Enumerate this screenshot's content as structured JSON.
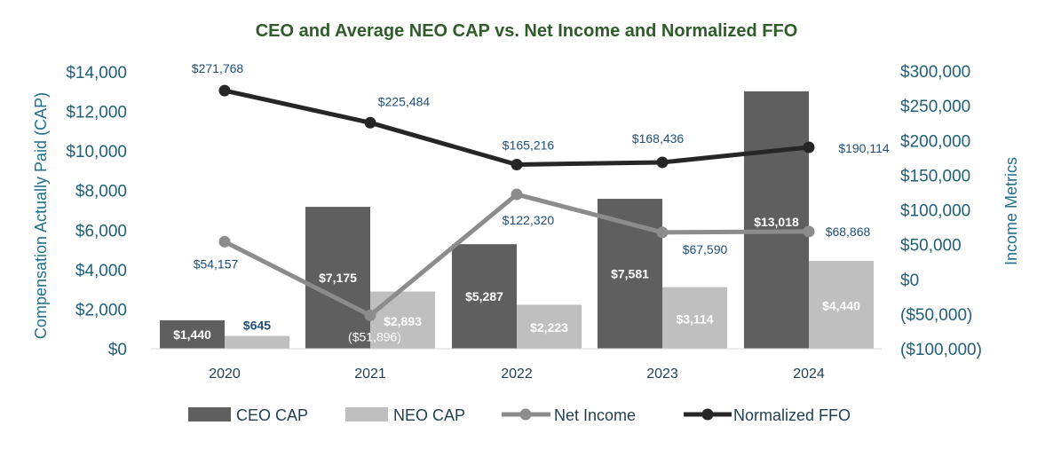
{
  "chart_data": {
    "type": "bar",
    "title": "CEO and Average NEO CAP vs. Net Income and Normalized FFO",
    "categories": [
      "2020",
      "2021",
      "2022",
      "2023",
      "2024"
    ],
    "ylabel": "Compensation Actually Paid (CAP)",
    "y2label": "Income Metrics",
    "ylim": [
      0,
      14000
    ],
    "y2lim": [
      -100000,
      300000
    ],
    "yticks": [
      "$0",
      "$2,000",
      "$4,000",
      "$6,000",
      "$8,000",
      "$10,000",
      "$12,000",
      "$14,000"
    ],
    "y2ticks": [
      "($100,000)",
      "($50,000)",
      "$0",
      "$50,000",
      "$100,000",
      "$150,000",
      "$200,000",
      "$250,000",
      "$300,000"
    ],
    "bar_series": [
      {
        "name": "CEO CAP",
        "color": "#5f5f5f",
        "values": [
          1440,
          7175,
          5287,
          7581,
          13018
        ],
        "labels": [
          "$1,440",
          "$7,175",
          "$5,287",
          "$7,581",
          "$13,018"
        ]
      },
      {
        "name": "NEO CAP",
        "color": "#bfbfbf",
        "values": [
          645,
          2893,
          2223,
          3114,
          4440
        ],
        "labels": [
          "$645",
          "$2,893",
          "$2,223",
          "$3,114",
          "$4,440"
        ]
      }
    ],
    "line_series": [
      {
        "name": "Net Income",
        "color": "#8c8c8c",
        "values": [
          54157,
          -51896,
          122320,
          67590,
          68868
        ],
        "labels": [
          "$54,157",
          "($51,896)",
          "$122,320",
          "$67,590",
          "$68,868"
        ]
      },
      {
        "name": "Normalized FFO",
        "color": "#262626",
        "values": [
          271768,
          225484,
          165216,
          168436,
          190114
        ],
        "labels": [
          "$271,768",
          "$225,484",
          "$165,216",
          "$168,436",
          "$190,114"
        ]
      }
    ],
    "legend": [
      "CEO CAP",
      "NEO CAP",
      "Net Income",
      "Normalized FFO"
    ],
    "legend_position": "bottom",
    "grid": false
  }
}
